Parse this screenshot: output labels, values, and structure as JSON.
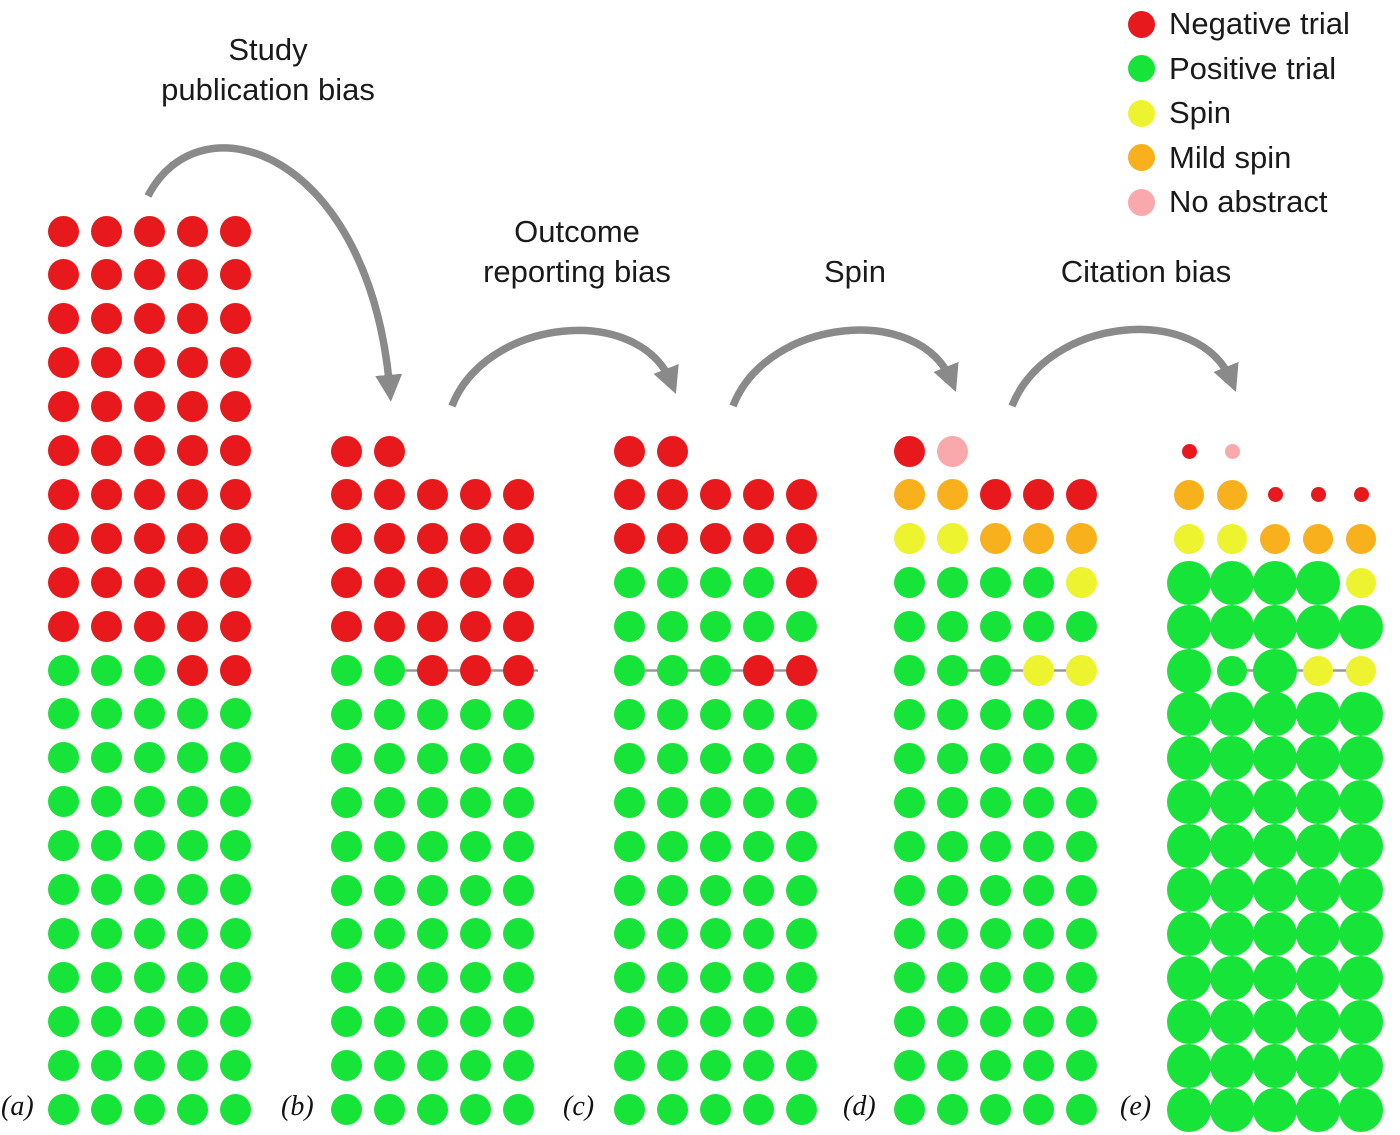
{
  "legend": {
    "items": [
      {
        "key": "negative-trial",
        "color": "#e8191d",
        "label": "Negative trial"
      },
      {
        "key": "positive-trial",
        "color": "#17e438",
        "label": "Positive trial"
      },
      {
        "key": "spin",
        "color": "#edf32f",
        "label": "Spin"
      },
      {
        "key": "mild-spin",
        "color": "#f8b11d",
        "label": "Mild spin"
      },
      {
        "key": "no-abstract",
        "color": "#f9a8ac",
        "label": "No abstract"
      }
    ]
  },
  "annotations": {
    "study_line1": "Study",
    "study_line2": "publication bias",
    "outcome_line1": "Outcome",
    "outcome_line2": "reporting bias",
    "spin": "Spin",
    "citation": "Citation bias"
  },
  "colors": {
    "R": "#e8191d",
    "G": "#17e438",
    "Y": "#edf32f",
    "O": "#f8b11d",
    "P": "#f9a8ac",
    "arrow": "#8a8a8a",
    "divider": "#999999"
  },
  "dot_sizes": {
    "s": 15,
    "m": 30,
    "l": 44,
    "default": 31
  },
  "panels": [
    {
      "id": "a",
      "label": "(a)",
      "rows": [
        [
          "R",
          "R",
          "R",
          "R",
          "R"
        ],
        [
          "R",
          "R",
          "R",
          "R",
          "R"
        ],
        [
          "R",
          "R",
          "R",
          "R",
          "R"
        ],
        [
          "R",
          "R",
          "R",
          "R",
          "R"
        ],
        [
          "R",
          "R",
          "R",
          "R",
          "R"
        ],
        [
          "R",
          "R",
          "R",
          "R",
          "R"
        ],
        [
          "R",
          "R",
          "R",
          "R",
          "R"
        ],
        [
          "R",
          "R",
          "R",
          "R",
          "R"
        ],
        [
          "R",
          "R",
          "R",
          "R",
          "R"
        ],
        [
          "R",
          "R",
          "R",
          "R",
          "R"
        ],
        [
          "G",
          "G",
          "G",
          "R",
          "R"
        ],
        [
          "G",
          "G",
          "G",
          "G",
          "G"
        ],
        [
          "G",
          "G",
          "G",
          "G",
          "G"
        ],
        [
          "G",
          "G",
          "G",
          "G",
          "G"
        ],
        [
          "G",
          "G",
          "G",
          "G",
          "G"
        ],
        [
          "G",
          "G",
          "G",
          "G",
          "G"
        ],
        [
          "G",
          "G",
          "G",
          "G",
          "G"
        ],
        [
          "G",
          "G",
          "G",
          "G",
          "G"
        ],
        [
          "G",
          "G",
          "G",
          "G",
          "G"
        ],
        [
          "G",
          "G",
          "G",
          "G",
          "G"
        ],
        [
          "G",
          "G",
          "G",
          "G",
          "G"
        ]
      ]
    },
    {
      "id": "b",
      "label": "(b)",
      "rows": [
        [
          "R",
          "R",
          "",
          "",
          ""
        ],
        [
          "R",
          "R",
          "R",
          "R",
          "R"
        ],
        [
          "R",
          "R",
          "R",
          "R",
          "R"
        ],
        [
          "R",
          "R",
          "R",
          "R",
          "R"
        ],
        [
          "R",
          "R",
          "R",
          "R",
          "R"
        ],
        [
          "G",
          "G",
          "R",
          "R",
          "R"
        ],
        [
          "G",
          "G",
          "G",
          "G",
          "G"
        ],
        [
          "G",
          "G",
          "G",
          "G",
          "G"
        ],
        [
          "G",
          "G",
          "G",
          "G",
          "G"
        ],
        [
          "G",
          "G",
          "G",
          "G",
          "G"
        ],
        [
          "G",
          "G",
          "G",
          "G",
          "G"
        ],
        [
          "G",
          "G",
          "G",
          "G",
          "G"
        ],
        [
          "G",
          "G",
          "G",
          "G",
          "G"
        ],
        [
          "G",
          "G",
          "G",
          "G",
          "G"
        ],
        [
          "G",
          "G",
          "G",
          "G",
          "G"
        ],
        [
          "G",
          "G",
          "G",
          "G",
          "G"
        ]
      ]
    },
    {
      "id": "c",
      "label": "(c)",
      "rows": [
        [
          "R",
          "R",
          "",
          "",
          ""
        ],
        [
          "R",
          "R",
          "R",
          "R",
          "R"
        ],
        [
          "R",
          "R",
          "R",
          "R",
          "R"
        ],
        [
          "G",
          "G",
          "G",
          "G",
          "R"
        ],
        [
          "G",
          "G",
          "G",
          "G",
          "G"
        ],
        [
          "G",
          "G",
          "G",
          "R",
          "R"
        ],
        [
          "G",
          "G",
          "G",
          "G",
          "G"
        ],
        [
          "G",
          "G",
          "G",
          "G",
          "G"
        ],
        [
          "G",
          "G",
          "G",
          "G",
          "G"
        ],
        [
          "G",
          "G",
          "G",
          "G",
          "G"
        ],
        [
          "G",
          "G",
          "G",
          "G",
          "G"
        ],
        [
          "G",
          "G",
          "G",
          "G",
          "G"
        ],
        [
          "G",
          "G",
          "G",
          "G",
          "G"
        ],
        [
          "G",
          "G",
          "G",
          "G",
          "G"
        ],
        [
          "G",
          "G",
          "G",
          "G",
          "G"
        ],
        [
          "G",
          "G",
          "G",
          "G",
          "G"
        ]
      ]
    },
    {
      "id": "d",
      "label": "(d)",
      "rows": [
        [
          "R",
          "P",
          "",
          "",
          ""
        ],
        [
          "O",
          "O",
          "R",
          "R",
          "R"
        ],
        [
          "Y",
          "Y",
          "O",
          "O",
          "O"
        ],
        [
          "G",
          "G",
          "G",
          "G",
          "Y"
        ],
        [
          "G",
          "G",
          "G",
          "G",
          "G"
        ],
        [
          "G",
          "G",
          "G",
          "Y",
          "Y"
        ],
        [
          "G",
          "G",
          "G",
          "G",
          "G"
        ],
        [
          "G",
          "G",
          "G",
          "G",
          "G"
        ],
        [
          "G",
          "G",
          "G",
          "G",
          "G"
        ],
        [
          "G",
          "G",
          "G",
          "G",
          "G"
        ],
        [
          "G",
          "G",
          "G",
          "G",
          "G"
        ],
        [
          "G",
          "G",
          "G",
          "G",
          "G"
        ],
        [
          "G",
          "G",
          "G",
          "G",
          "G"
        ],
        [
          "G",
          "G",
          "G",
          "G",
          "G"
        ],
        [
          "G",
          "G",
          "G",
          "G",
          "G"
        ],
        [
          "G",
          "G",
          "G",
          "G",
          "G"
        ]
      ]
    },
    {
      "id": "e",
      "label": "(e)",
      "rows": [
        [
          "Rs",
          "Ps",
          "",
          "",
          ""
        ],
        [
          "Om",
          "Om",
          "Rs",
          "Rs",
          "Rs"
        ],
        [
          "Ym",
          "Ym",
          "Om",
          "Om",
          "Om"
        ],
        [
          "Gl",
          "Gl",
          "Gl",
          "Gl",
          "Ym"
        ],
        [
          "Gl",
          "Gl",
          "Gl",
          "Gl",
          "Gl"
        ],
        [
          "Gl",
          "Gm",
          "Gl",
          "Ym",
          "Ym"
        ],
        [
          "Gl",
          "Gl",
          "Gl",
          "Gl",
          "Gl"
        ],
        [
          "Gl",
          "Gl",
          "Gl",
          "Gl",
          "Gl"
        ],
        [
          "Gl",
          "Gl",
          "Gl",
          "Gl",
          "Gl"
        ],
        [
          "Gl",
          "Gl",
          "Gl",
          "Gl",
          "Gl"
        ],
        [
          "Gl",
          "Gl",
          "Gl",
          "Gl",
          "Gl"
        ],
        [
          "Gl",
          "Gl",
          "Gl",
          "Gl",
          "Gl"
        ],
        [
          "Gl",
          "Gl",
          "Gl",
          "Gl",
          "Gl"
        ],
        [
          "Gl",
          "Gl",
          "Gl",
          "Gl",
          "Gl"
        ],
        [
          "Gl",
          "Gl",
          "Gl",
          "Gl",
          "Gl"
        ],
        [
          "Gl",
          "Gl",
          "Gl",
          "Gl",
          "Gl"
        ]
      ]
    }
  ]
}
